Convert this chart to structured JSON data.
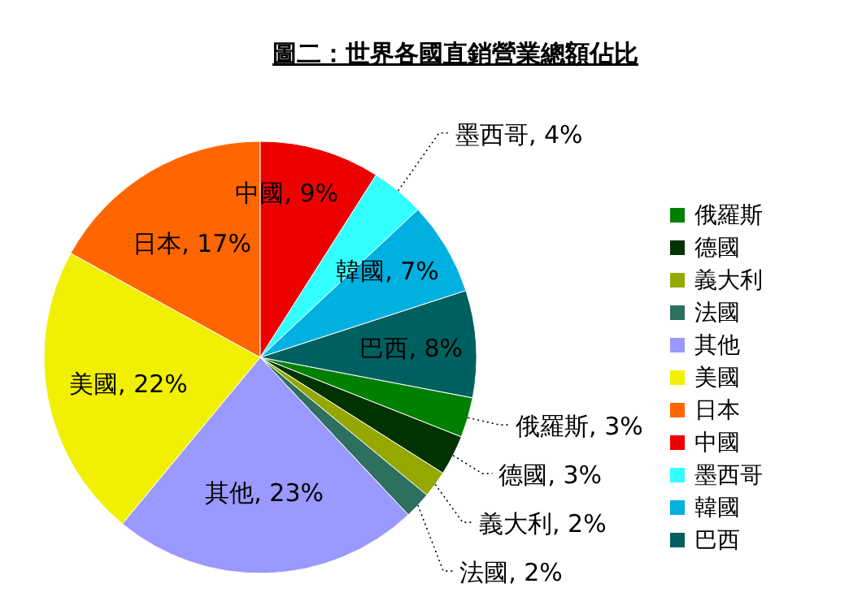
{
  "chart_data": {
    "type": "pie",
    "title": "圖二：世界各國直銷營業總額佔比",
    "categories": [
      "俄羅斯",
      "德國",
      "義大利",
      "法國",
      "其他",
      "美國",
      "日本",
      "中國",
      "墨西哥",
      "韓國",
      "巴西"
    ],
    "values": [
      3,
      3,
      2,
      2,
      23,
      22,
      17,
      9,
      4,
      7,
      8
    ],
    "colors": [
      "#008000",
      "#003300",
      "#94a800",
      "#2e7060",
      "#9999ff",
      "#f0f000",
      "#ff6600",
      "#ee0000",
      "#33ffff",
      "#00b0e0",
      "#006060"
    ],
    "value_labels": [
      "俄羅斯, 3%",
      "德國, 3%",
      "義大利, 2%",
      "法國, 2%",
      "其他, 23%",
      "美國, 22%",
      "日本, 17%",
      "中國, 9%",
      "墨西哥, 4%",
      "韓國, 7%",
      "巴西, 8%"
    ],
    "legend": "right"
  }
}
